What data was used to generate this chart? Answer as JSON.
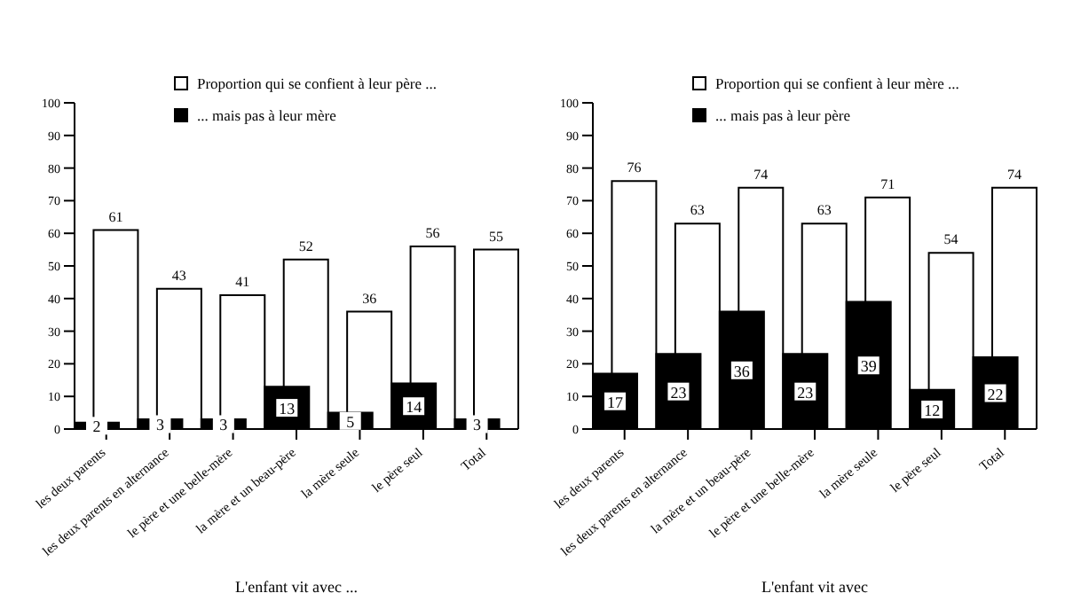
{
  "chart_data": [
    {
      "type": "bar",
      "xlabel": "L'enfant vit avec ...",
      "categories": [
        "les deux parents",
        "les deux parents en alternance",
        "le père et une belle-mère",
        "la mère et un beau-père",
        "la mère seule",
        "le père seul",
        "Total"
      ],
      "series": [
        {
          "name": "Proportion qui se confient à leur père ...",
          "color": "#ffffff",
          "values": [
            61,
            43,
            41,
            52,
            36,
            56,
            55
          ]
        },
        {
          "name": "... mais pas à leur mère",
          "color": "#000000",
          "values": [
            2,
            3,
            3,
            13,
            5,
            14,
            3
          ]
        }
      ],
      "ylim": [
        0,
        100
      ],
      "yticks": [
        0,
        10,
        20,
        30,
        40,
        50,
        60,
        70,
        80,
        90,
        100
      ],
      "grid": false,
      "legend": "top",
      "data_labels": true
    },
    {
      "type": "bar",
      "xlabel": "L'enfant vit avec",
      "categories": [
        "les deux parents",
        "les deux parents en alternance",
        "la mère et un beau-père",
        "le père et une belle-mère",
        "la mère seule",
        "le père seul",
        "Total"
      ],
      "series": [
        {
          "name": "Proportion qui se confient à leur mère ...",
          "color": "#ffffff",
          "values": [
            76,
            63,
            74,
            63,
            71,
            54,
            74
          ]
        },
        {
          "name": "... mais pas à leur père",
          "color": "#000000",
          "values": [
            17,
            23,
            36,
            23,
            39,
            12,
            22
          ]
        }
      ],
      "ylim": [
        0,
        100
      ],
      "yticks": [
        0,
        10,
        20,
        30,
        40,
        50,
        60,
        70,
        80,
        90,
        100
      ],
      "grid": false,
      "legend": "top",
      "data_labels": true
    }
  ]
}
